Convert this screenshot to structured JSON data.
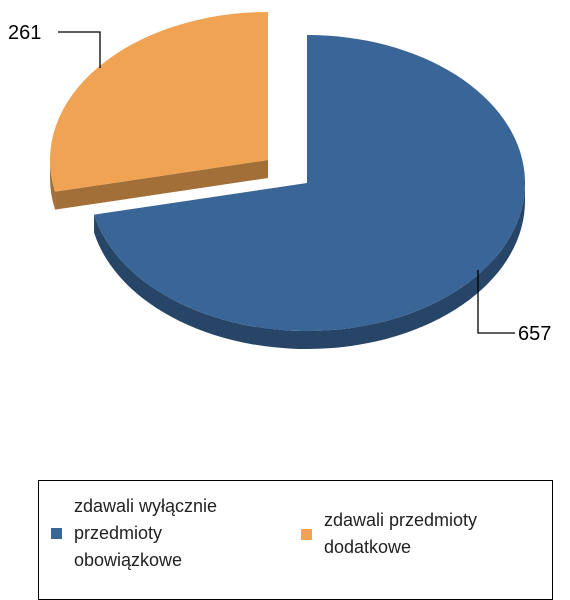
{
  "chart_data": {
    "type": "pie",
    "categories": [
      "zdawali wyłącznie przedmioty obowiązkowe",
      "zdawali przedmioty dodatkowe"
    ],
    "values": [
      657,
      261
    ],
    "colors": [
      "#3a6597",
      "#f0a352"
    ]
  }
}
